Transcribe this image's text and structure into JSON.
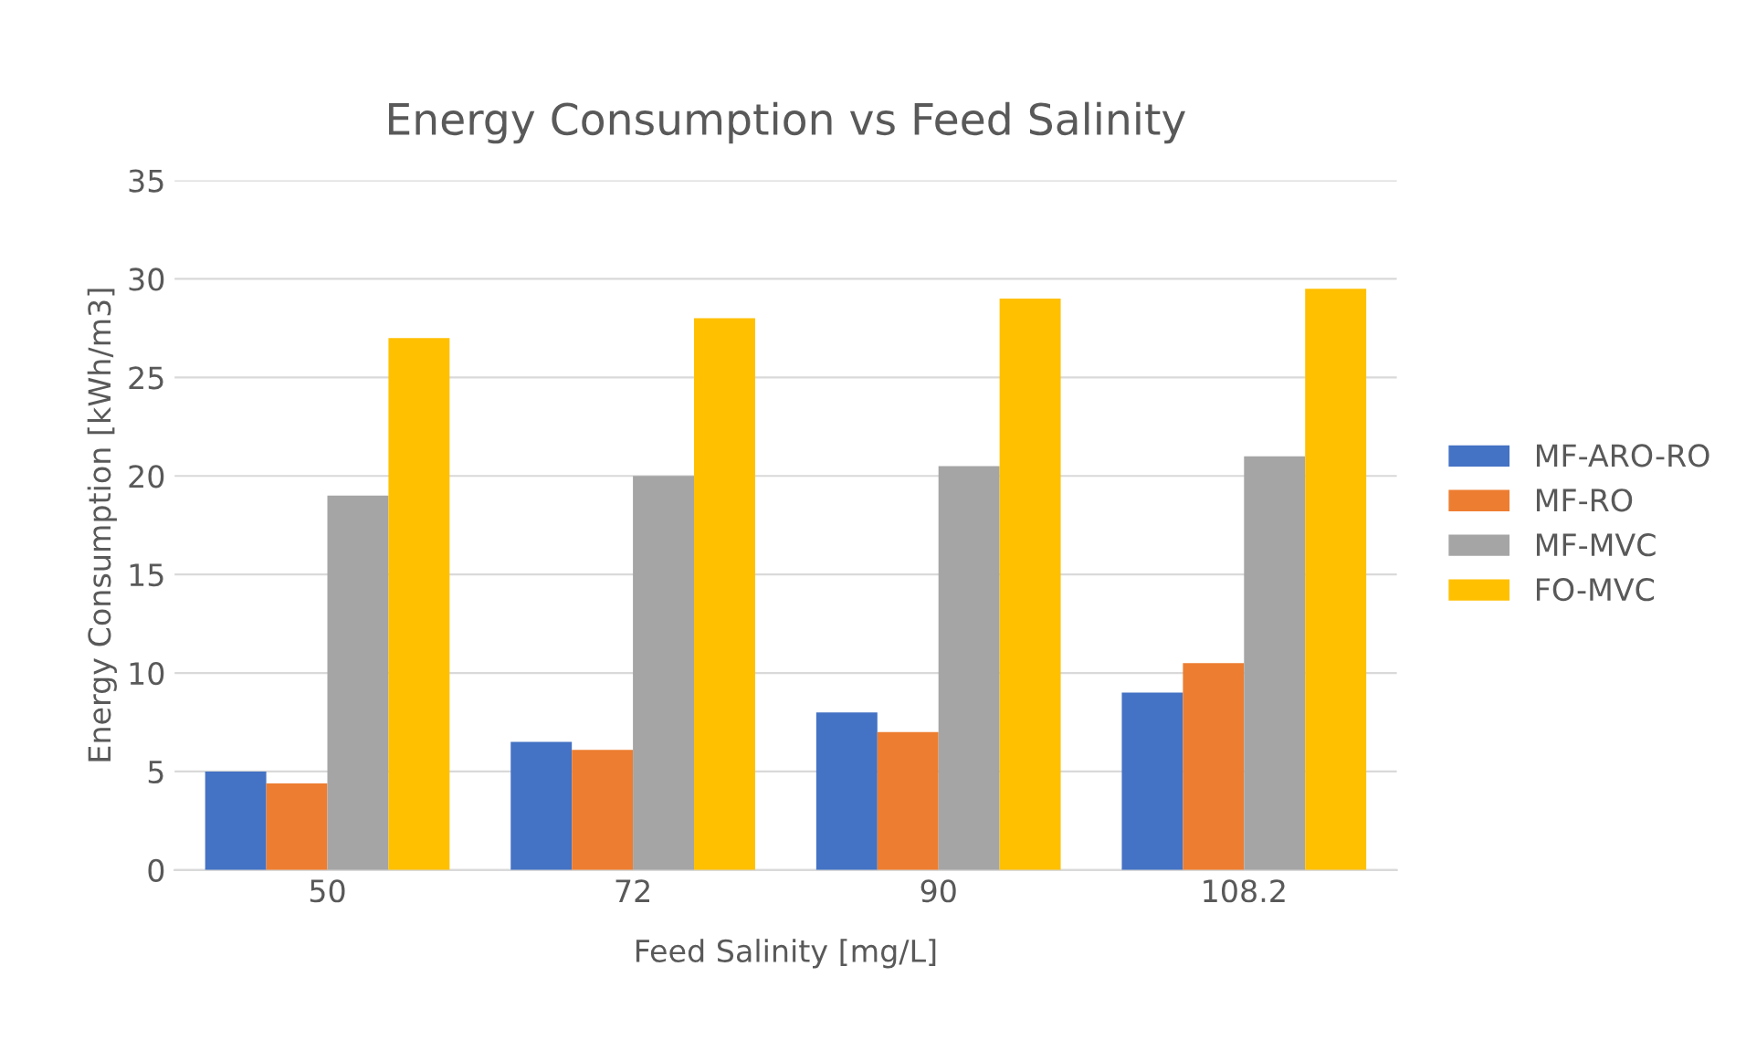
{
  "chart_data": {
    "type": "bar",
    "title": "Energy Consumption vs Feed Salinity",
    "xlabel": "Feed Salinity [mg/L]",
    "ylabel": "Energy Consumption [kWh/m3]",
    "categories": [
      "50",
      "72",
      "90",
      "108.2"
    ],
    "series": [
      {
        "name": "MF-ARO-RO",
        "color": "#4472c4",
        "values": [
          5,
          6.5,
          8,
          9
        ]
      },
      {
        "name": "MF-RO",
        "color": "#ed7d31",
        "values": [
          4.4,
          6.1,
          7,
          10.5
        ]
      },
      {
        "name": "MF-MVC",
        "color": "#a5a5a5",
        "values": [
          19,
          20,
          20.5,
          21
        ]
      },
      {
        "name": "FO-MVC",
        "color": "#ffc000",
        "values": [
          27,
          28,
          29,
          29.5
        ]
      }
    ],
    "ylim": [
      0,
      35
    ],
    "yticks": [
      0,
      5,
      10,
      15,
      20,
      25,
      30,
      35
    ],
    "grid": "y",
    "legend": "right"
  }
}
